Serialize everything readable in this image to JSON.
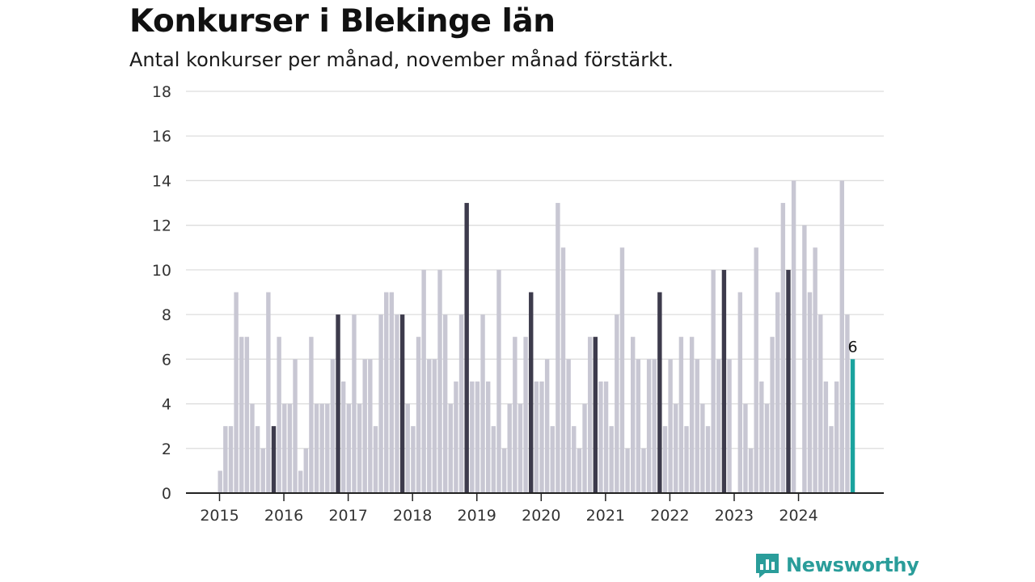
{
  "chart_data": {
    "type": "bar",
    "title": "Konkurser i Blekinge län",
    "subtitle": "Antal konkurser per månad, november månad förstärkt.",
    "x_tick_labels": [
      "2015",
      "2016",
      "2017",
      "2018",
      "2019",
      "2020",
      "2021",
      "2022",
      "2023",
      "2024"
    ],
    "y_ticks": [
      0,
      2,
      4,
      6,
      8,
      10,
      12,
      14,
      16,
      18
    ],
    "ylim": [
      0,
      18
    ],
    "start": "2015-01",
    "values": [
      1,
      3,
      3,
      9,
      7,
      7,
      4,
      3,
      2,
      9,
      3,
      7,
      4,
      4,
      6,
      1,
      2,
      7,
      4,
      4,
      4,
      6,
      8,
      5,
      4,
      8,
      4,
      6,
      6,
      3,
      8,
      9,
      9,
      8,
      8,
      4,
      3,
      7,
      10,
      6,
      6,
      10,
      8,
      4,
      5,
      8,
      13,
      5,
      5,
      8,
      5,
      3,
      10,
      2,
      4,
      7,
      4,
      7,
      9,
      5,
      5,
      6,
      3,
      13,
      11,
      6,
      3,
      2,
      4,
      7,
      7,
      5,
      5,
      3,
      8,
      11,
      2,
      7,
      6,
      2,
      6,
      6,
      9,
      3,
      6,
      4,
      7,
      3,
      7,
      6,
      4,
      3,
      10,
      6,
      10,
      6,
      0,
      9,
      4,
      2,
      11,
      5,
      4,
      7,
      9,
      13,
      10,
      14,
      0,
      12,
      9,
      11,
      8,
      5,
      3,
      5,
      14,
      8,
      6
    ],
    "highlight_month": "november",
    "latest_value_label": "6",
    "colors": {
      "bar": "#c8c7d3",
      "november": "#3d3b4c",
      "latest": "#1aa39e"
    }
  },
  "brand": {
    "name": "Newsworthy",
    "icon": "newsworthy-logo-icon",
    "color": "#2a9d9a"
  }
}
